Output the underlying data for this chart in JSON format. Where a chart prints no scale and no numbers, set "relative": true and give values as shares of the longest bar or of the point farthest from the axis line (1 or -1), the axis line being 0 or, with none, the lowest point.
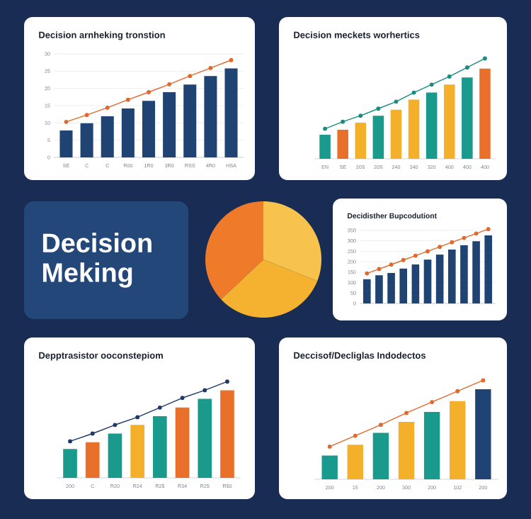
{
  "chart_data": [
    {
      "type": "bar",
      "title": "Decision arnheking tronstion",
      "categories": [
        "SE",
        "C",
        "C",
        "R00",
        "1R0",
        "3R0",
        "RSS",
        "4R0",
        "HSA"
      ],
      "ylim": [
        0,
        30
      ],
      "yticks": [
        0,
        5,
        10,
        15,
        20,
        25,
        30
      ],
      "grid": "y",
      "marker": "circle",
      "series": [
        {
          "type": "bar",
          "colors": [
            "#1f4473",
            "#1f4473",
            "#1f4473",
            "#1f4473",
            "#1f4473",
            "#1f4473",
            "#1f4473",
            "#1f4473",
            "#1f4473"
          ],
          "values": [
            7.8,
            9.9,
            11.9,
            14.2,
            16.4,
            18.9,
            21.1,
            23.6,
            25.8
          ]
        },
        {
          "type": "line",
          "color": "#e0692e",
          "values": [
            10.3,
            12.3,
            14.4,
            16.7,
            18.9,
            21.2,
            23.6,
            25.9,
            28.2
          ]
        }
      ]
    },
    {
      "type": "bar",
      "title": "Decision meckets worhertics",
      "categories": [
        "EN",
        "SE",
        "20S",
        "20S",
        "240",
        "340",
        "320",
        "400",
        "400",
        "400"
      ],
      "relative": true,
      "marker": "circle",
      "series": [
        {
          "type": "bar",
          "colors": [
            "#1a9a8c",
            "#e8702a",
            "#f4b02a",
            "#1a9a8c",
            "#f4b02a",
            "#f4b02a",
            "#1a9a8c",
            "#f4b02a",
            "#1a9a8c",
            "#e8702a"
          ],
          "values": [
            0.24,
            0.29,
            0.36,
            0.43,
            0.49,
            0.59,
            0.66,
            0.74,
            0.81,
            0.9
          ]
        },
        {
          "type": "line",
          "color": "#178c80",
          "values": [
            0.3,
            0.37,
            0.43,
            0.5,
            0.57,
            0.66,
            0.74,
            0.82,
            0.91,
            1
          ]
        }
      ]
    },
    {
      "type": "other",
      "title": "Decision Meking"
    },
    {
      "type": "pie",
      "categories": [
        null,
        null,
        null
      ],
      "values": [
        37,
        32,
        31
      ],
      "colors": [
        "#ee7a2a",
        "#f4b230",
        "#f8c34c"
      ]
    },
    {
      "type": "bar",
      "title": "Decidisther Bupcodutiont",
      "categories": [
        null,
        null,
        null,
        null,
        null,
        null,
        null,
        null,
        null,
        null,
        null
      ],
      "ylim": [
        0,
        360
      ],
      "yticks": [
        0,
        50,
        100,
        150,
        200,
        250,
        300,
        350
      ],
      "grid": "y",
      "marker": "circle",
      "series": [
        {
          "type": "bar",
          "colors": [
            "#1f4473",
            "#1f4473",
            "#1f4473",
            "#1f4473",
            "#1f4473",
            "#1f4473",
            "#1f4473",
            "#1f4473",
            "#1f4473",
            "#1f4473",
            "#1f4473"
          ],
          "values": [
            116,
            135,
            146,
            167,
            187,
            210,
            234,
            258,
            279,
            298,
            326
          ]
        },
        {
          "type": "line",
          "color": "#e0692e",
          "values": [
            144,
            165,
            186,
            208,
            229,
            250,
            271,
            293,
            314,
            335,
            356
          ]
        }
      ]
    },
    {
      "type": "bar",
      "title": "Depptrasistor ooconstepiom",
      "categories": [
        "200",
        "C",
        "R20",
        "R24",
        "R25",
        "R34",
        "R25",
        "R50"
      ],
      "relative": true,
      "marker": "circle",
      "series": [
        {
          "type": "bar",
          "colors": [
            "#1a9a8c",
            "#e8702a",
            "#1a9a8c",
            "#f4b02a",
            "#1a9a8c",
            "#e8702a",
            "#1a9a8c",
            "#e8702a"
          ],
          "values": [
            0.3,
            0.37,
            0.46,
            0.55,
            0.64,
            0.73,
            0.82,
            0.91
          ]
        },
        {
          "type": "line",
          "color": "#1f3a66",
          "values": [
            0.38,
            0.46,
            0.55,
            0.63,
            0.73,
            0.83,
            0.91,
            1
          ]
        }
      ]
    },
    {
      "type": "bar",
      "title": "Deccisof/Decliglas Indodectos",
      "categories": [
        "200",
        "15",
        "200",
        "300",
        "200",
        "102",
        "200"
      ],
      "relative": true,
      "marker": "circle",
      "series": [
        {
          "type": "bar",
          "colors": [
            "#1a9a8c",
            "#f4b02a",
            "#1a9a8c",
            "#f4b02a",
            "#1a9a8c",
            "#f4b02a",
            "#1f4473"
          ],
          "values": [
            0.24,
            0.35,
            0.47,
            0.58,
            0.68,
            0.79,
            0.91
          ]
        },
        {
          "type": "line",
          "color": "#e0692e",
          "values": [
            0.33,
            0.44,
            0.55,
            0.67,
            0.78,
            0.89,
            1
          ]
        }
      ]
    }
  ]
}
